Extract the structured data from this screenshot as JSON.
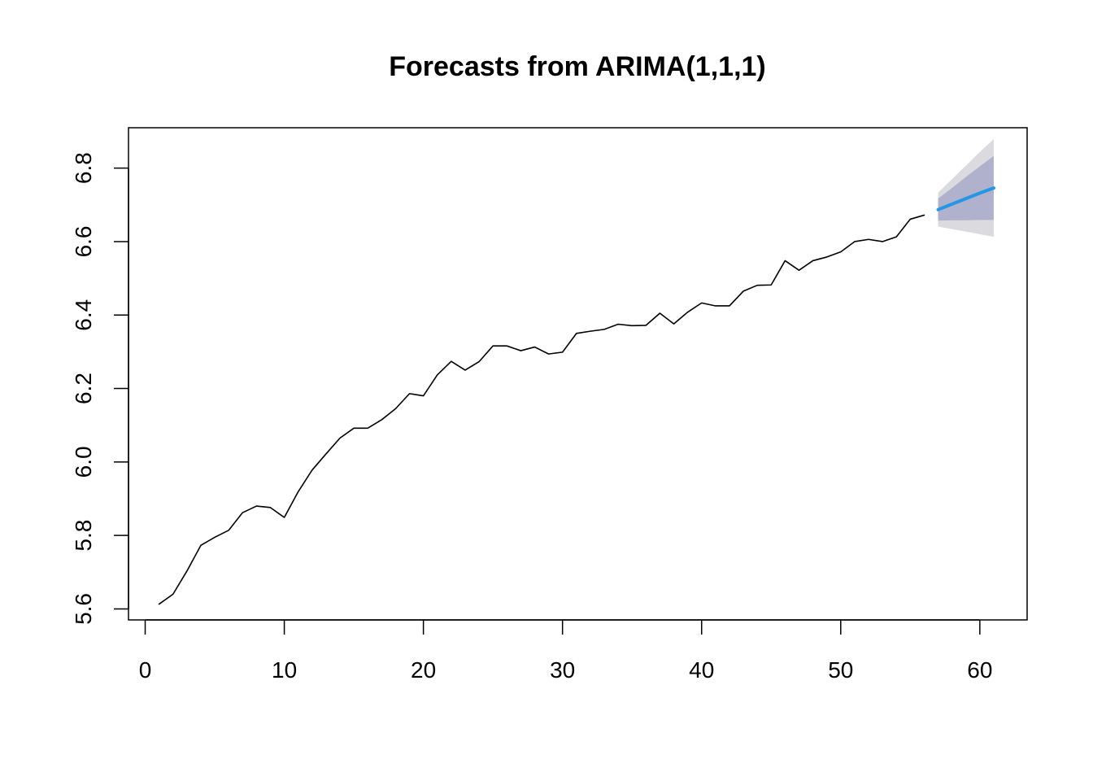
{
  "chart_data": {
    "type": "line",
    "title": "Forecasts from ARIMA(1,1,1)",
    "xlabel": "",
    "ylabel": "",
    "xlim": [
      -1.2,
      63.4
    ],
    "ylim": [
      5.57,
      6.91
    ],
    "x_ticks": [
      0,
      10,
      20,
      30,
      40,
      50,
      60
    ],
    "y_ticks": [
      5.6,
      5.8,
      6.0,
      6.2,
      6.4,
      6.6,
      6.8
    ],
    "grid": false,
    "legend": "none",
    "series": [
      {
        "x": [
          1,
          2,
          3,
          4,
          5,
          6,
          7,
          8,
          9,
          10,
          11,
          12,
          13,
          14,
          15,
          16,
          17,
          18,
          19,
          20,
          21,
          22,
          23,
          24,
          25,
          26,
          27,
          28,
          29,
          30,
          31,
          32,
          33,
          34,
          35,
          36,
          37,
          38,
          39,
          40,
          41,
          42,
          43,
          44,
          45,
          46,
          47,
          48,
          49,
          50,
          51,
          52,
          53,
          54,
          55,
          56
        ],
        "values": [
          5.613,
          5.64,
          5.703,
          5.773,
          5.795,
          5.814,
          5.862,
          5.88,
          5.876,
          5.849,
          5.919,
          5.978,
          6.022,
          6.065,
          6.092,
          6.092,
          6.115,
          6.145,
          6.186,
          6.18,
          6.237,
          6.274,
          6.25,
          6.273,
          6.316,
          6.316,
          6.303,
          6.313,
          6.294,
          6.299,
          6.35,
          6.356,
          6.361,
          6.375,
          6.371,
          6.372,
          6.405,
          6.376,
          6.408,
          6.433,
          6.425,
          6.425,
          6.465,
          6.481,
          6.482,
          6.548,
          6.522,
          6.548,
          6.558,
          6.572,
          6.6,
          6.606,
          6.6,
          6.613,
          6.661,
          6.672
        ],
        "color": "#000000"
      },
      {
        "x": [
          57,
          58,
          59,
          60,
          61
        ],
        "values": [
          6.687,
          6.702,
          6.717,
          6.732,
          6.746
        ],
        "color": "#2297e6",
        "lo80": [
          6.657,
          6.658,
          6.658,
          6.659,
          6.659
        ],
        "hi80": [
          6.717,
          6.746,
          6.776,
          6.805,
          6.833
        ],
        "lo95": [
          6.641,
          6.634,
          6.627,
          6.62,
          6.613
        ],
        "hi95": [
          6.733,
          6.77,
          6.807,
          6.844,
          6.879
        ],
        "band80_color": "#b0b2cd",
        "band95_color": "#dbdbdf"
      }
    ]
  }
}
